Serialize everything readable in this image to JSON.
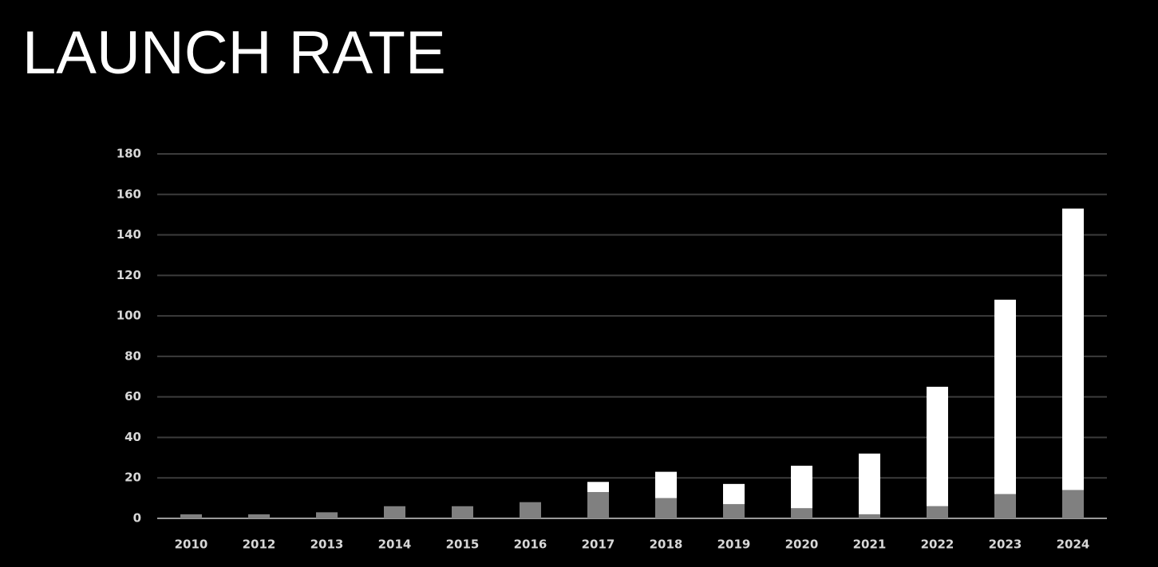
{
  "chart_data": {
    "type": "stacked_bar",
    "title": "LAUNCH RATE",
    "categories": [
      "2010",
      "2012",
      "2013",
      "2014",
      "2015",
      "2016",
      "2017",
      "2018",
      "2019",
      "2020",
      "2021",
      "2022",
      "2023",
      "2024"
    ],
    "series": [
      {
        "color": "#808080",
        "values": [
          2,
          2,
          3,
          6,
          6,
          8,
          13,
          10,
          7,
          5,
          2,
          6,
          12,
          14
        ]
      },
      {
        "color": "#ffffff",
        "values": [
          0,
          0,
          0,
          0,
          0,
          0,
          5,
          13,
          10,
          21,
          30,
          59,
          96,
          139
        ]
      }
    ],
    "ylim": [
      0,
      180
    ],
    "yticks": [
      0,
      20,
      40,
      60,
      80,
      100,
      120,
      140,
      160,
      180
    ],
    "grid": true
  }
}
